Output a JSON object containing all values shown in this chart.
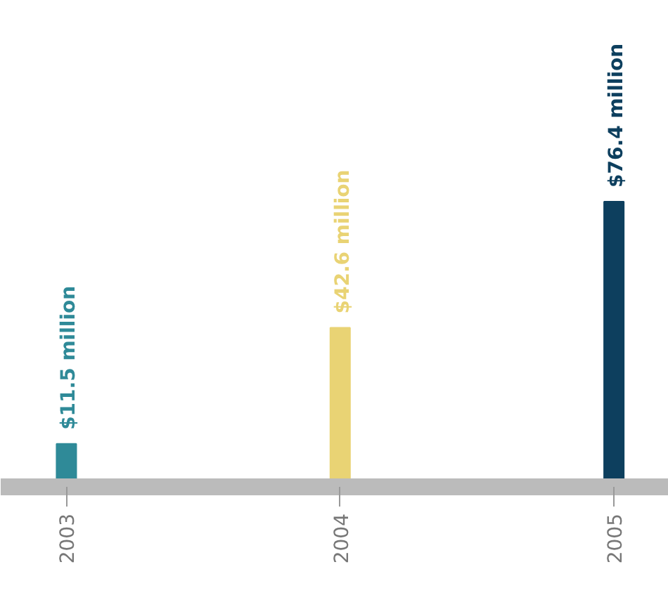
{
  "chart_data": {
    "type": "bar",
    "categories": [
      "2003",
      "2004",
      "2005"
    ],
    "values": [
      11.5,
      42.6,
      76.4
    ],
    "colors": [
      "#2f8a98",
      "#e9d374",
      "#0d3f5e"
    ],
    "value_labels": [
      "$11.5 million",
      "$42.6 million",
      "$76.4 million"
    ],
    "grid": false
  }
}
